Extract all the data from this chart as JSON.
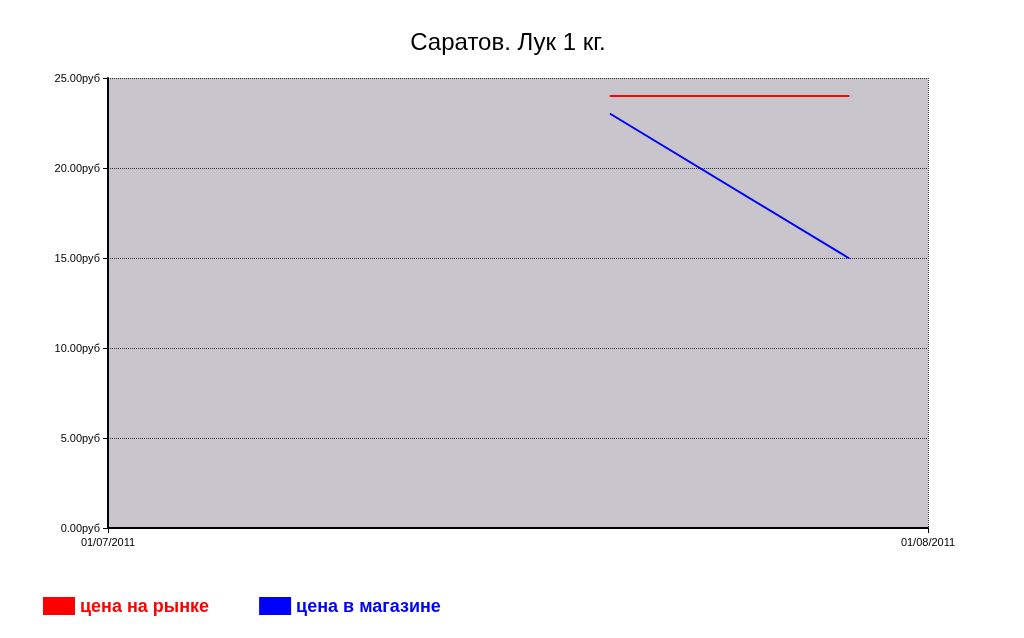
{
  "chart_data": {
    "type": "line",
    "title": "Саратов. Лук 1 кг.",
    "series": [
      {
        "name": "цена на рынке",
        "color": "#ff0000",
        "x": [
          "2011-07-20",
          "2011-07-29"
        ],
        "values": [
          24,
          24
        ]
      },
      {
        "name": "цена в магазине",
        "color": "#0000ff",
        "x": [
          "2011-07-20",
          "2011-07-29"
        ],
        "values": [
          23,
          15
        ]
      }
    ],
    "xlim": [
      "2011-07-01",
      "2011-08-01"
    ],
    "xticks": [
      {
        "value": "2011-07-01",
        "label": "01/07/2011"
      },
      {
        "value": "2011-08-01",
        "label": "01/08/2011"
      }
    ],
    "ylim": [
      0,
      25
    ],
    "yticks": [
      {
        "value": 0,
        "label": "0.00руб"
      },
      {
        "value": 5,
        "label": "5.00руб"
      },
      {
        "value": 10,
        "label": "10.00руб"
      },
      {
        "value": 15,
        "label": "15.00руб"
      },
      {
        "value": 20,
        "label": "20.00руб"
      },
      {
        "value": 25,
        "label": "25.00руб"
      }
    ],
    "grid": true,
    "legend": "bottom left",
    "marker": "none",
    "line_style": "solid"
  }
}
